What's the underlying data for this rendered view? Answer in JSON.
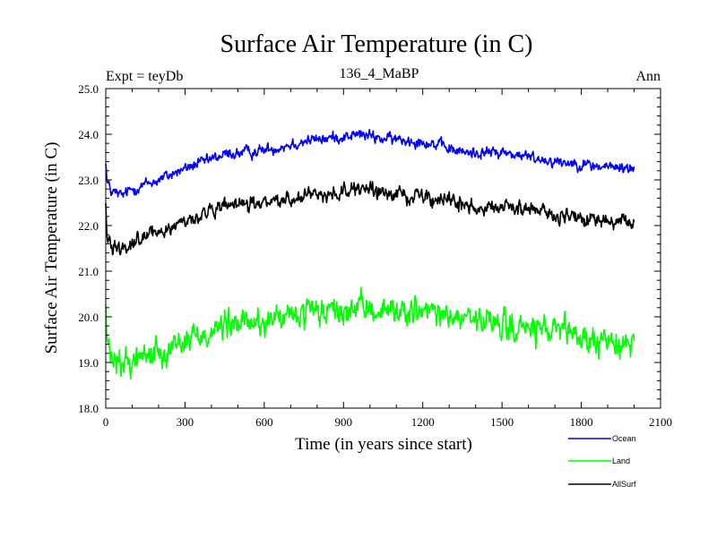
{
  "chart_data": {
    "type": "line",
    "title": "Surface Air Temperature (in C)",
    "subtitle_left": "Expt = teyDb",
    "subtitle_center": "136_4_MaBP",
    "subtitle_right": "Ann",
    "xlabel": "Time (in years since start)",
    "ylabel": "Surface Air Temperature (in C)",
    "xlim": [
      0,
      2100
    ],
    "ylim": [
      18.0,
      25.0
    ],
    "x_ticks": [
      0,
      300,
      600,
      900,
      1200,
      1500,
      1800,
      2100
    ],
    "y_ticks": [
      18.0,
      19.0,
      20.0,
      21.0,
      22.0,
      23.0,
      24.0,
      25.0
    ],
    "legend_position": "bottom-right",
    "series": [
      {
        "name": "Ocean",
        "color": "#0000ff",
        "noise": 0.12,
        "anchors_x": [
          0,
          5,
          20,
          60,
          100,
          200,
          300,
          450,
          600,
          750,
          900,
          960,
          1050,
          1200,
          1350,
          1500,
          1650,
          1800,
          1850,
          2000
        ],
        "anchors_y": [
          23.45,
          22.95,
          22.75,
          22.65,
          22.8,
          23.0,
          23.25,
          23.55,
          23.65,
          23.85,
          23.95,
          24.0,
          23.9,
          23.85,
          23.6,
          23.6,
          23.45,
          23.35,
          23.3,
          23.25
        ]
      },
      {
        "name": "Land",
        "color": "#00ff00",
        "noise": 0.28,
        "anchors_x": [
          0,
          5,
          20,
          60,
          100,
          200,
          300,
          450,
          600,
          750,
          900,
          960,
          1050,
          1200,
          1350,
          1500,
          1650,
          1800,
          1850,
          2000
        ],
        "anchors_y": [
          20.3,
          19.4,
          19.05,
          18.95,
          19.05,
          19.25,
          19.5,
          19.8,
          19.9,
          20.05,
          20.1,
          20.2,
          20.15,
          20.1,
          19.95,
          19.8,
          19.7,
          19.55,
          19.45,
          19.45
        ]
      },
      {
        "name": "AllSurf",
        "color": "#000000",
        "noise": 0.15,
        "anchors_x": [
          0,
          5,
          20,
          60,
          100,
          200,
          300,
          450,
          600,
          750,
          900,
          960,
          1050,
          1200,
          1350,
          1500,
          1650,
          1800,
          1850,
          2000
        ],
        "anchors_y": [
          22.4,
          21.85,
          21.6,
          21.5,
          21.65,
          21.85,
          22.1,
          22.4,
          22.5,
          22.65,
          22.75,
          22.8,
          22.7,
          22.65,
          22.45,
          22.4,
          22.3,
          22.15,
          22.1,
          22.05
        ]
      }
    ]
  }
}
